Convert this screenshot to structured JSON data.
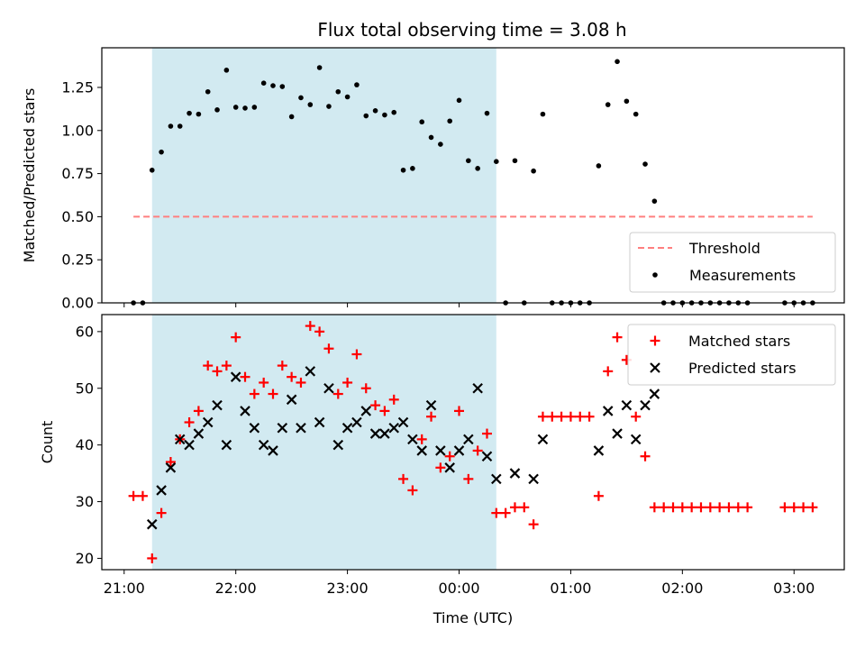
{
  "chart_data": [
    {
      "type": "scatter",
      "title": "Flux total observing time = 3.08 h",
      "xlabel": "",
      "ylabel": "Matched/Predicted stars",
      "ylim": [
        0,
        1.48
      ],
      "yticks": [
        "0.00",
        "0.25",
        "0.50",
        "0.75",
        "1.00",
        "1.25"
      ],
      "shaded_region": {
        "from": "21:15",
        "to": "00:20",
        "color": "#add8e6"
      },
      "legend_position": "lower-right",
      "threshold": {
        "name": "Threshold",
        "value": 0.5,
        "from": "21:05",
        "to": "03:10",
        "color": "#ff7f7f"
      },
      "series": [
        {
          "name": "Measurements",
          "marker": "dot",
          "color": "#000000",
          "points": [
            [
              "21:05",
              0
            ],
            [
              "21:10",
              0
            ],
            [
              "21:15",
              0.77
            ],
            [
              "21:20",
              0.875
            ],
            [
              "21:25",
              1.025
            ],
            [
              "21:30",
              1.025
            ],
            [
              "21:35",
              1.1
            ],
            [
              "21:40",
              1.095
            ],
            [
              "21:45",
              1.225
            ],
            [
              "21:50",
              1.12
            ],
            [
              "21:55",
              1.35
            ],
            [
              "22:00",
              1.135
            ],
            [
              "22:05",
              1.13
            ],
            [
              "22:10",
              1.135
            ],
            [
              "22:15",
              1.275
            ],
            [
              "22:20",
              1.26
            ],
            [
              "22:25",
              1.255
            ],
            [
              "22:30",
              1.08
            ],
            [
              "22:35",
              1.19
            ],
            [
              "22:40",
              1.15
            ],
            [
              "22:45",
              1.365
            ],
            [
              "22:50",
              1.14
            ],
            [
              "22:55",
              1.225
            ],
            [
              "23:00",
              1.195
            ],
            [
              "23:05",
              1.265
            ],
            [
              "23:10",
              1.085
            ],
            [
              "23:15",
              1.115
            ],
            [
              "23:20",
              1.09
            ],
            [
              "23:25",
              1.105
            ],
            [
              "23:30",
              0.77
            ],
            [
              "23:35",
              0.78
            ],
            [
              "23:40",
              1.05
            ],
            [
              "23:45",
              0.96
            ],
            [
              "23:50",
              0.92
            ],
            [
              "23:55",
              1.055
            ],
            [
              "00:00",
              1.175
            ],
            [
              "00:05",
              0.825
            ],
            [
              "00:10",
              0.78
            ],
            [
              "00:15",
              1.1
            ],
            [
              "00:20",
              0.82
            ],
            [
              "00:25",
              0
            ],
            [
              "00:30",
              0.825
            ],
            [
              "00:35",
              0
            ],
            [
              "00:40",
              0.765
            ],
            [
              "00:45",
              1.095
            ],
            [
              "00:50",
              0
            ],
            [
              "00:55",
              0
            ],
            [
              "01:00",
              0
            ],
            [
              "01:05",
              0
            ],
            [
              "01:10",
              0
            ],
            [
              "01:15",
              0.795
            ],
            [
              "01:20",
              1.15
            ],
            [
              "01:25",
              1.4
            ],
            [
              "01:30",
              1.17
            ],
            [
              "01:35",
              1.095
            ],
            [
              "01:40",
              0.805
            ],
            [
              "01:45",
              0.59
            ],
            [
              "01:50",
              0
            ],
            [
              "01:55",
              0
            ],
            [
              "02:00",
              0
            ],
            [
              "02:05",
              0
            ],
            [
              "02:10",
              0
            ],
            [
              "02:15",
              0
            ],
            [
              "02:20",
              0
            ],
            [
              "02:25",
              0
            ],
            [
              "02:30",
              0
            ],
            [
              "02:35",
              0
            ],
            [
              "02:55",
              0
            ],
            [
              "03:00",
              0
            ],
            [
              "03:05",
              0
            ],
            [
              "03:10",
              0
            ]
          ]
        }
      ]
    },
    {
      "type": "scatter",
      "title": "",
      "xlabel": "Time (UTC)",
      "ylabel": "Count",
      "ylim": [
        18,
        63
      ],
      "yticks": [
        "20",
        "30",
        "40",
        "50",
        "60"
      ],
      "xticks": [
        "21:00",
        "22:00",
        "23:00",
        "00:00",
        "01:00",
        "02:00",
        "03:00"
      ],
      "shaded_region": {
        "from": "21:15",
        "to": "00:20",
        "color": "#add8e6"
      },
      "legend_position": "upper-right",
      "series": [
        {
          "name": "Matched stars",
          "marker": "plus",
          "color": "#ff0000",
          "points": [
            [
              "21:05",
              31
            ],
            [
              "21:10",
              31
            ],
            [
              "21:15",
              20
            ],
            [
              "21:20",
              28
            ],
            [
              "21:25",
              37
            ],
            [
              "21:30",
              41
            ],
            [
              "21:35",
              44
            ],
            [
              "21:40",
              46
            ],
            [
              "21:45",
              54
            ],
            [
              "21:50",
              53
            ],
            [
              "21:55",
              54
            ],
            [
              "22:00",
              59
            ],
            [
              "22:05",
              52
            ],
            [
              "22:10",
              49
            ],
            [
              "22:15",
              51
            ],
            [
              "22:20",
              49
            ],
            [
              "22:25",
              54
            ],
            [
              "22:30",
              52
            ],
            [
              "22:35",
              51
            ],
            [
              "22:40",
              61
            ],
            [
              "22:45",
              60
            ],
            [
              "22:50",
              57
            ],
            [
              "22:55",
              49
            ],
            [
              "23:00",
              51
            ],
            [
              "23:05",
              56
            ],
            [
              "23:10",
              50
            ],
            [
              "23:15",
              47
            ],
            [
              "23:20",
              46
            ],
            [
              "23:25",
              48
            ],
            [
              "23:30",
              34
            ],
            [
              "23:35",
              32
            ],
            [
              "23:40",
              41
            ],
            [
              "23:45",
              45
            ],
            [
              "23:50",
              36
            ],
            [
              "23:55",
              38
            ],
            [
              "00:00",
              46
            ],
            [
              "00:05",
              34
            ],
            [
              "00:10",
              39
            ],
            [
              "00:15",
              42
            ],
            [
              "00:20",
              28
            ],
            [
              "00:25",
              28
            ],
            [
              "00:30",
              29
            ],
            [
              "00:35",
              29
            ],
            [
              "00:40",
              26
            ],
            [
              "00:45",
              45
            ],
            [
              "00:50",
              45
            ],
            [
              "00:55",
              45
            ],
            [
              "01:00",
              45
            ],
            [
              "01:05",
              45
            ],
            [
              "01:10",
              45
            ],
            [
              "01:15",
              31
            ],
            [
              "01:20",
              53
            ],
            [
              "01:25",
              59
            ],
            [
              "01:30",
              55
            ],
            [
              "01:35",
              45
            ],
            [
              "01:40",
              38
            ],
            [
              "01:45",
              29
            ],
            [
              "01:50",
              29
            ],
            [
              "01:55",
              29
            ],
            [
              "02:00",
              29
            ],
            [
              "02:05",
              29
            ],
            [
              "02:10",
              29
            ],
            [
              "02:15",
              29
            ],
            [
              "02:20",
              29
            ],
            [
              "02:25",
              29
            ],
            [
              "02:30",
              29
            ],
            [
              "02:35",
              29
            ],
            [
              "02:55",
              29
            ],
            [
              "03:00",
              29
            ],
            [
              "03:05",
              29
            ],
            [
              "03:10",
              29
            ]
          ]
        },
        {
          "name": "Predicted stars",
          "marker": "x",
          "color": "#000000",
          "points": [
            [
              "21:15",
              26
            ],
            [
              "21:20",
              32
            ],
            [
              "21:25",
              36
            ],
            [
              "21:30",
              41
            ],
            [
              "21:35",
              40
            ],
            [
              "21:40",
              42
            ],
            [
              "21:45",
              44
            ],
            [
              "21:50",
              47
            ],
            [
              "21:55",
              40
            ],
            [
              "22:00",
              52
            ],
            [
              "22:05",
              46
            ],
            [
              "22:10",
              43
            ],
            [
              "22:15",
              40
            ],
            [
              "22:20",
              39
            ],
            [
              "22:25",
              43
            ],
            [
              "22:30",
              48
            ],
            [
              "22:35",
              43
            ],
            [
              "22:40",
              53
            ],
            [
              "22:45",
              44
            ],
            [
              "22:50",
              50
            ],
            [
              "22:55",
              40
            ],
            [
              "23:00",
              43
            ],
            [
              "23:05",
              44
            ],
            [
              "23:10",
              46
            ],
            [
              "23:15",
              42
            ],
            [
              "23:20",
              42
            ],
            [
              "23:25",
              43
            ],
            [
              "23:30",
              44
            ],
            [
              "23:35",
              41
            ],
            [
              "23:40",
              39
            ],
            [
              "23:45",
              47
            ],
            [
              "23:50",
              39
            ],
            [
              "23:55",
              36
            ],
            [
              "00:00",
              39
            ],
            [
              "00:05",
              41
            ],
            [
              "00:10",
              50
            ],
            [
              "00:15",
              38
            ],
            [
              "00:20",
              34
            ],
            [
              "00:30",
              35
            ],
            [
              "00:40",
              34
            ],
            [
              "00:45",
              41
            ],
            [
              "01:15",
              39
            ],
            [
              "01:20",
              46
            ],
            [
              "01:25",
              42
            ],
            [
              "01:30",
              47
            ],
            [
              "01:35",
              41
            ],
            [
              "01:40",
              47
            ],
            [
              "01:45",
              49
            ]
          ]
        }
      ]
    }
  ]
}
